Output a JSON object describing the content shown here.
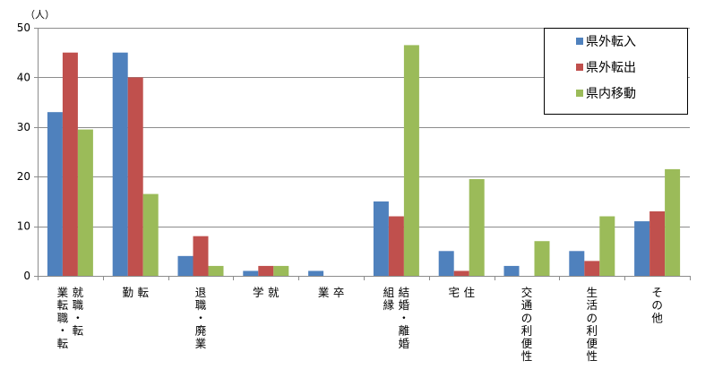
{
  "chart_data": {
    "type": "bar",
    "unit_label": "（人）",
    "ylim": [
      0,
      50
    ],
    "yticks": [
      0,
      10,
      20,
      30,
      40,
      50
    ],
    "grid": true,
    "legend_position": "top-right",
    "categories": [
      {
        "columns": [
          "就職・転",
          "業転職・転"
        ]
      },
      {
        "columns": [
          "転",
          "勤"
        ]
      },
      {
        "columns": [
          "退職・廃業"
        ]
      },
      {
        "columns": [
          "就",
          "学"
        ]
      },
      {
        "columns": [
          "卒",
          "業"
        ]
      },
      {
        "columns": [
          "結婚・離婚",
          "組縁"
        ]
      },
      {
        "columns": [
          "住",
          "宅"
        ]
      },
      {
        "columns": [
          "交通の利便性"
        ]
      },
      {
        "columns": [
          "生活の利便性"
        ]
      },
      {
        "columns": [
          "その他"
        ]
      }
    ],
    "series": [
      {
        "name": "県外転入",
        "color": "#4f81bd",
        "values": [
          33,
          45,
          4,
          1,
          1,
          15,
          5,
          2,
          5,
          11
        ]
      },
      {
        "name": "県外転出",
        "color": "#c0504d",
        "values": [
          45,
          40,
          8,
          2,
          0,
          12,
          1,
          0,
          3,
          13
        ]
      },
      {
        "name": "県内移動",
        "color": "#9bbb59",
        "values": [
          29.5,
          16.5,
          2,
          2,
          0,
          46.5,
          19.5,
          7,
          12,
          21.5
        ]
      }
    ]
  }
}
